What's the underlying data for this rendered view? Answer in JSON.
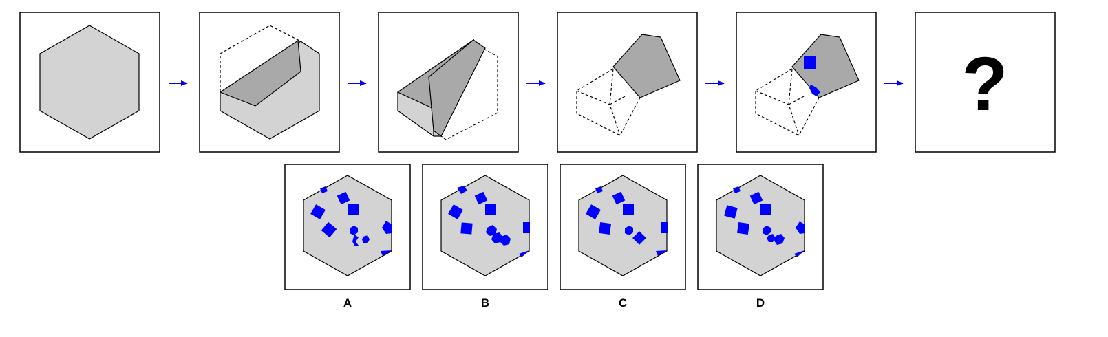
{
  "question_mark": "?",
  "options": [
    {
      "label": "A"
    },
    {
      "label": "B"
    },
    {
      "label": "C"
    },
    {
      "label": "D"
    }
  ],
  "colors": {
    "paper_fill": "#d3d3d3",
    "fold_fill": "#a9a9a9",
    "hole_fill": "#0000ff",
    "arrow": "#0000ff",
    "stroke": "#000000"
  },
  "icons": [
    "right-arrow-icon",
    "question-mark-icon"
  ]
}
